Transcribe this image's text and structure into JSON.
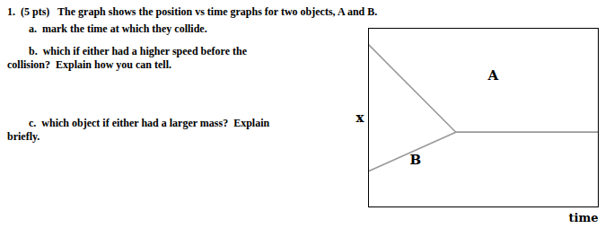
{
  "chart_data": {
    "type": "line",
    "title": "1.  (5 pts)   The graph shows the position vs time graphs for two objects, A and B.",
    "subtitle": [
      "        a.  mark the time at which they collide.",
      "        b.  which if either had a higher speed before the\ncollision?  Explain how you can tell.",
      "        c.  which object if either had a larger mass?  Explain\nbriefly."
    ],
    "xlabel": "time",
    "ylabel": "x",
    "series": [
      {
        "color": "#999999",
        "x": [
          0.0,
          0.38,
          1.0
        ],
        "values": [
          1.0,
          0.46,
          0.46
        ]
      },
      {
        "color": "#999999",
        "x": [
          0.0,
          0.38,
          1.0
        ],
        "values": [
          0.22,
          0.46,
          0.46
        ]
      }
    ],
    "annotations": [
      {
        "text": "A",
        "x": 0.52,
        "y": 0.78
      },
      {
        "text": "B",
        "x": 0.18,
        "y": 0.26
      }
    ],
    "xlim": [
      0,
      1.0
    ],
    "ylim": [
      0,
      1.1
    ],
    "xticks": [],
    "yticks": [],
    "tick_labels": false
  }
}
